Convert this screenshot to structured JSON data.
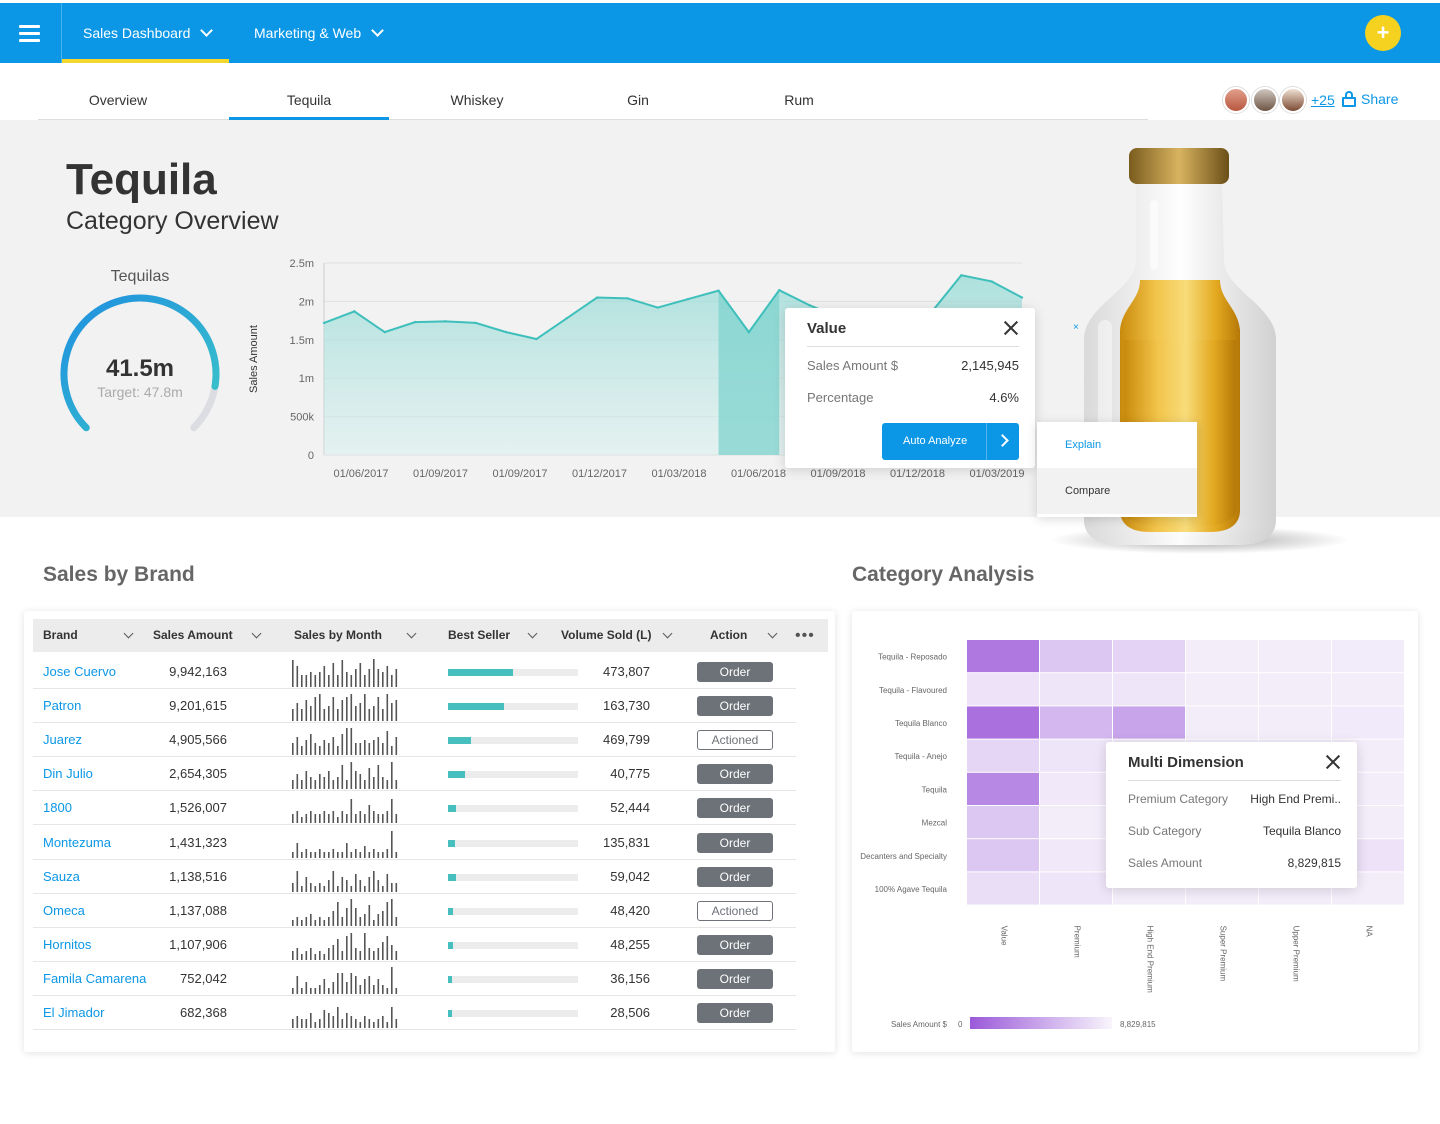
{
  "topbar": {
    "tabs": [
      {
        "label": "Sales Dashboard"
      },
      {
        "label": "Marketing & Web"
      }
    ],
    "fab_label": "+"
  },
  "category_tabs": [
    {
      "label": "Overview"
    },
    {
      "label": "Tequila"
    },
    {
      "label": "Whiskey"
    },
    {
      "label": "Gin"
    },
    {
      "label": "Rum"
    }
  ],
  "active_tab": "Tequila",
  "collaborators": {
    "more": "+25",
    "share_label": "Share"
  },
  "hero": {
    "title": "Tequila",
    "subtitle": "Category Overview",
    "gauge": {
      "label": "Tequilas",
      "value": "41.5m",
      "target": "Target: 47.8m",
      "fraction": 0.868
    }
  },
  "chart_data": {
    "type": "area",
    "ylabel": "Sales Amount",
    "y_ticks": [
      "2.5m",
      "2m",
      "1.5m",
      "1m",
      "500k",
      "0"
    ],
    "ylim": [
      0,
      2500000
    ],
    "x_ticks": [
      "01/06/2017",
      "01/09/2017",
      "01/09/2017",
      "01/12/2017",
      "01/03/2018",
      "01/06/2018",
      "01/09/2018",
      "01/12/2018",
      "01/03/2019"
    ],
    "values": [
      1720000,
      1870000,
      1600000,
      1730000,
      1740000,
      1720000,
      1600000,
      1510000,
      1780000,
      2050000,
      2040000,
      1920000,
      2030000,
      2140000,
      1600000,
      2145945,
      1950000,
      1790000,
      1740000,
      1720000,
      1850000,
      2340000,
      2260000,
      2050000
    ],
    "highlight_range": [
      13,
      15
    ],
    "grid": true
  },
  "value_tooltip": {
    "title": "Value",
    "rows": [
      {
        "key": "Sales Amount $",
        "value": "2,145,945"
      },
      {
        "key": "Percentage",
        "value": "4.6%"
      }
    ],
    "button": "Auto Analyze",
    "close_glyph": "×"
  },
  "context_menu": {
    "items": [
      {
        "label": "Explain"
      },
      {
        "label": "Compare"
      }
    ]
  },
  "sales_by_brand": {
    "title": "Sales by Brand",
    "columns": [
      "Brand",
      "Sales Amount",
      "Sales by Month",
      "Best Seller",
      "Volume Sold (L)",
      "Action"
    ],
    "more_glyph": "•••",
    "rows": [
      {
        "brand": "Jose Cuervo",
        "amount": "9,942,163",
        "best": 0.5,
        "volume": "473,807",
        "action": "Order",
        "spark": [
          9,
          7,
          4,
          4,
          5,
          4,
          5,
          7,
          4,
          8,
          4,
          9,
          5,
          4,
          6,
          8,
          4,
          6,
          10,
          6,
          5,
          7,
          4,
          6
        ]
      },
      {
        "brand": "Patron",
        "amount": "9,201,615",
        "best": 0.43,
        "volume": "163,730",
        "action": "Order",
        "spark": [
          4,
          6,
          4,
          7,
          5,
          8,
          9,
          4,
          5,
          8,
          4,
          7,
          8,
          9,
          5,
          6,
          9,
          4,
          5,
          8,
          4,
          9,
          6,
          7
        ]
      },
      {
        "brand": "Juarez",
        "amount": "4,905,566",
        "best": 0.18,
        "volume": "469,799",
        "action": "Actioned",
        "spark": [
          4,
          6,
          3,
          5,
          7,
          4,
          3,
          5,
          4,
          6,
          3,
          7,
          9,
          9,
          4,
          4,
          5,
          4,
          5,
          6,
          4,
          8,
          3,
          6
        ]
      },
      {
        "brand": "Din Julio",
        "amount": "2,654,305",
        "best": 0.13,
        "volume": "40,775",
        "action": "Order",
        "spark": [
          3,
          5,
          3,
          6,
          4,
          3,
          5,
          4,
          6,
          3,
          4,
          8,
          3,
          9,
          6,
          5,
          3,
          7,
          4,
          8,
          4,
          3,
          9,
          3
        ]
      },
      {
        "brand": "1800",
        "amount": "1,526,007",
        "best": 0.06,
        "volume": "52,444",
        "action": "Order",
        "spark": [
          3,
          4,
          2,
          3,
          4,
          3,
          3,
          4,
          3,
          4,
          2,
          4,
          3,
          8,
          3,
          4,
          3,
          6,
          4,
          3,
          3,
          4,
          8,
          3
        ]
      },
      {
        "brand": "Montezuma",
        "amount": "1,431,323",
        "best": 0.05,
        "volume": "135,831",
        "action": "Order",
        "spark": [
          2,
          5,
          2,
          3,
          2,
          2,
          3,
          2,
          2,
          3,
          2,
          2,
          5,
          2,
          3,
          2,
          4,
          2,
          3,
          2,
          2,
          3,
          9,
          2
        ]
      },
      {
        "brand": "Sauza",
        "amount": "1,138,516",
        "best": 0.06,
        "volume": "59,042",
        "action": "Order",
        "spark": [
          3,
          7,
          2,
          5,
          3,
          2,
          3,
          2,
          4,
          7,
          2,
          5,
          4,
          2,
          6,
          4,
          2,
          5,
          7,
          4,
          2,
          6,
          3,
          3
        ]
      },
      {
        "brand": "Omeca",
        "amount": "1,137,088",
        "best": 0.04,
        "volume": "48,420",
        "action": "Actioned",
        "spark": [
          2,
          3,
          2,
          3,
          4,
          2,
          3,
          2,
          3,
          5,
          8,
          3,
          6,
          9,
          6,
          3,
          4,
          7,
          2,
          4,
          5,
          8,
          9,
          3
        ]
      },
      {
        "brand": "Hornitos",
        "amount": "1,107,906",
        "best": 0.04,
        "volume": "48,255",
        "action": "Order",
        "spark": [
          3,
          4,
          2,
          3,
          4,
          2,
          3,
          2,
          4,
          5,
          7,
          3,
          8,
          9,
          4,
          3,
          9,
          4,
          3,
          4,
          6,
          8,
          5,
          3
        ]
      },
      {
        "brand": "Famila Camarena",
        "amount": "752,042",
        "best": 0.03,
        "volume": "36,156",
        "action": "Order",
        "spark": [
          2,
          6,
          2,
          4,
          2,
          2,
          3,
          5,
          2,
          4,
          7,
          7,
          4,
          7,
          6,
          3,
          5,
          6,
          3,
          5,
          3,
          2,
          9,
          2
        ]
      },
      {
        "brand": "El Jimador",
        "amount": "682,368",
        "best": 0.03,
        "volume": "28,506",
        "action": "Order",
        "spark": [
          3,
          4,
          3,
          3,
          5,
          2,
          3,
          6,
          5,
          4,
          7,
          3,
          5,
          4,
          3,
          2,
          4,
          3,
          2,
          3,
          4,
          2,
          7,
          3
        ]
      }
    ]
  },
  "category_analysis": {
    "title": "Category Analysis",
    "row_labels": [
      "Tequila - Reposado",
      "Tequila - Flavoured",
      "Tequila Blanco",
      "Tequila - Anejo",
      "Tequila",
      "Mezcal",
      "Decanters and Specialty",
      "100% Agave Tequila"
    ],
    "col_labels": [
      "Value",
      "Premium",
      "High End Premium",
      "Super Premium",
      "Upper Premium",
      "NA"
    ],
    "cells": [
      [
        0.8,
        0.3,
        0.22,
        0.05,
        0.05,
        0.06
      ],
      [
        0.12,
        0.1,
        0.1,
        0.05,
        0.05,
        0.05
      ],
      [
        0.85,
        0.4,
        0.52,
        0.05,
        0.05,
        0.07
      ],
      [
        0.2,
        0.1,
        0.08,
        0.05,
        0.05,
        0.05
      ],
      [
        0.7,
        0.08,
        0.06,
        0.05,
        0.05,
        0.05
      ],
      [
        0.3,
        0.05,
        0.05,
        0.05,
        0.05,
        0.05
      ],
      [
        0.3,
        0.08,
        0.8,
        0.05,
        0.05,
        0.12
      ],
      [
        0.15,
        0.1,
        0.05,
        0.05,
        0.05,
        0.05
      ]
    ],
    "legend": {
      "label": "Sales Amount $",
      "min": "0",
      "max": "8,829,815"
    },
    "accent": "#9b59d9"
  },
  "multi_tooltip": {
    "title": "Multi Dimension",
    "rows": [
      {
        "key": "Premium Category",
        "value": "High End Premi.."
      },
      {
        "key": "Sub Category",
        "value": "Tequila Blanco"
      },
      {
        "key": "Sales Amount",
        "value": "8,829,815"
      }
    ]
  }
}
